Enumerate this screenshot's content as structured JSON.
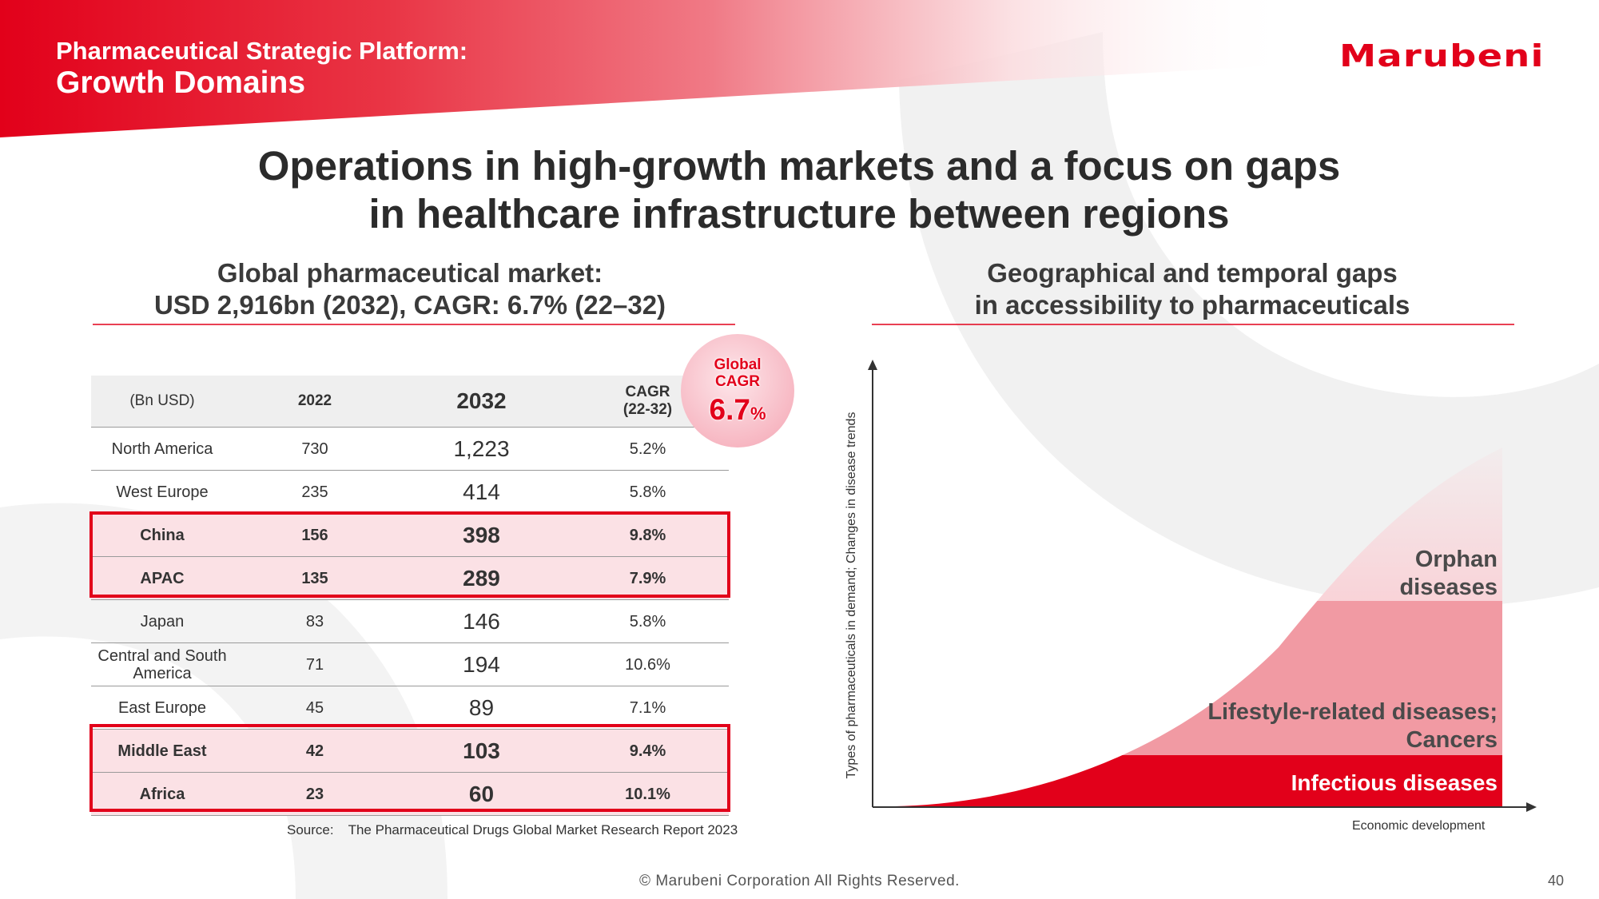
{
  "header": {
    "subtitle": "Pharmaceutical Strategic Platform:",
    "title": "Growth Domains",
    "logo_text": "Marubeni",
    "accent_color": "#e2001a"
  },
  "headline": {
    "line1": "Operations in high-growth markets and a focus on gaps",
    "line2": "in healthcare infrastructure between regions"
  },
  "left_section": {
    "heading_line1": "Global pharmaceutical market:",
    "heading_line2": "USD 2,916bn (2032), CAGR: 6.7% (22–32)"
  },
  "right_section": {
    "heading_line1": "Geographical and temporal gaps",
    "heading_line2": "in accessibility to pharmaceuticals"
  },
  "table": {
    "headers": {
      "unit": "(Bn USD)",
      "y2022": "2022",
      "y2032": "2032",
      "cagr_line1": "CAGR",
      "cagr_line2": "(22-32)"
    },
    "rows": [
      {
        "region": "North America",
        "v2022": "730",
        "v2032": "1,223",
        "cagr": "5.2%"
      },
      {
        "region": "West Europe",
        "v2022": "235",
        "v2032": "414",
        "cagr": "5.8%"
      },
      {
        "region": "China",
        "v2022": "156",
        "v2032": "398",
        "cagr": "9.8%"
      },
      {
        "region": "APAC",
        "v2022": "135",
        "v2032": "289",
        "cagr": "7.9%"
      },
      {
        "region": "Japan",
        "v2022": "83",
        "v2032": "146",
        "cagr": "5.8%"
      },
      {
        "region_line1": "Central and South",
        "region_line2": "America",
        "v2022": "71",
        "v2032": "194",
        "cagr": "10.6%"
      },
      {
        "region": "East Europe",
        "v2022": "45",
        "v2032": "89",
        "cagr": "7.1%"
      },
      {
        "region": "Middle East",
        "v2022": "42",
        "v2032": "103",
        "cagr": "9.4%"
      },
      {
        "region": "Africa",
        "v2022": "23",
        "v2032": "60",
        "cagr": "10.1%"
      }
    ],
    "highlighted_regions": [
      "China",
      "APAC",
      "Middle East",
      "Africa"
    ]
  },
  "badge": {
    "line1": "Global",
    "line2": "CAGR",
    "value": "6.7",
    "unit": "%"
  },
  "source": {
    "label": "Source:",
    "text": "The Pharmaceutical Drugs Global Market Research Report 2023"
  },
  "diagram": {
    "y_axis_label": "Types of pharmaceuticals in demand; Changes in disease trends",
    "x_axis_label": "Economic development",
    "bands": [
      {
        "label_line1": "Orphan",
        "label_line2": "diseases",
        "color": "#f9d3d8",
        "text_color": "#4a4a4a"
      },
      {
        "label_line1": "Lifestyle-related diseases;",
        "label_line2": "Cancers",
        "color": "#f19aa3",
        "text_color": "#4a4a4a"
      },
      {
        "label_line1": "Infectious diseases",
        "color": "#e2001a",
        "text_color": "#ffffff"
      }
    ]
  },
  "footer": {
    "copyright": "© Marubeni Corporation All Rights Reserved.",
    "page_number": "40"
  }
}
